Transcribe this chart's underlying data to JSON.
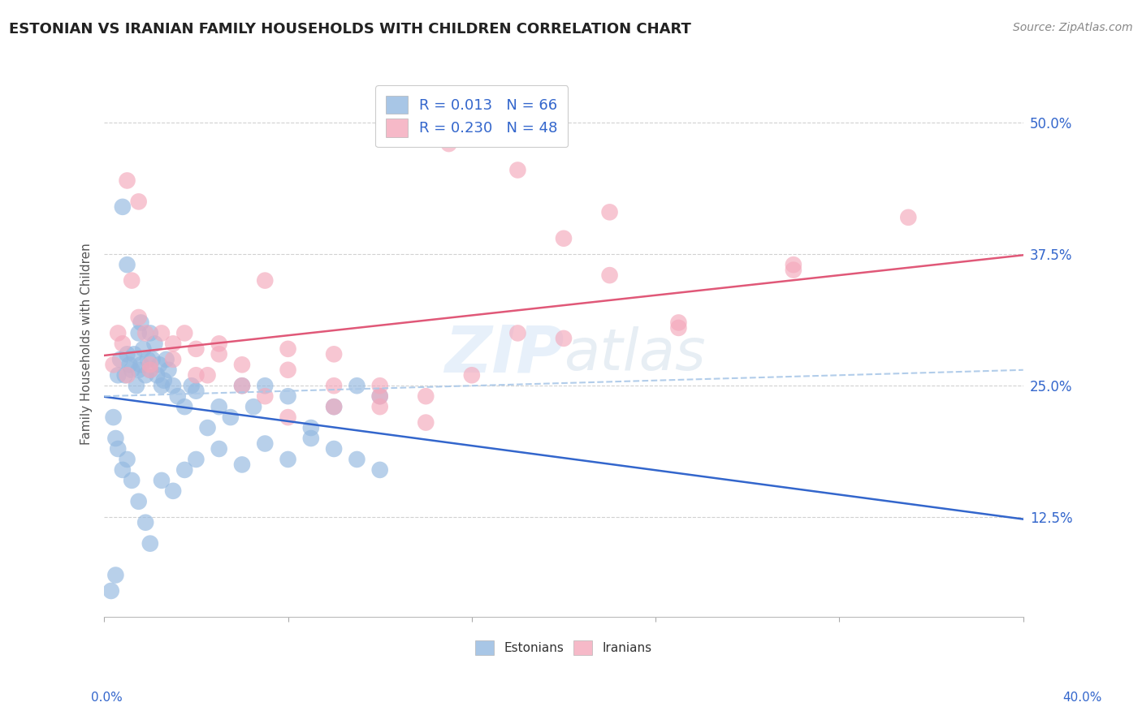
{
  "title": "ESTONIAN VS IRANIAN FAMILY HOUSEHOLDS WITH CHILDREN CORRELATION CHART",
  "source": "Source: ZipAtlas.com",
  "ylabel": "Family Households with Children",
  "xlim": [
    0.0,
    40.0
  ],
  "ylim": [
    3.0,
    55.0
  ],
  "yticks": [
    12.5,
    25.0,
    37.5,
    50.0
  ],
  "ytick_labels": [
    "12.5%",
    "25.0%",
    "37.5%",
    "50.0%"
  ],
  "estonian_color": "#92b8e0",
  "iranian_color": "#f4a8bb",
  "estonian_line_color": "#3366cc",
  "iranian_line_color": "#e05878",
  "dashed_line_color": "#aac8e8",
  "legend_text_color": "#3366cc",
  "tick_color": "#3366cc",
  "watermark": "ZIPatlas",
  "background_color": "#ffffff",
  "grid_color": "#cccccc",
  "estonian_x": [
    0.3,
    0.5,
    0.6,
    0.7,
    0.8,
    0.9,
    1.0,
    1.0,
    1.1,
    1.2,
    1.3,
    1.4,
    1.5,
    1.5,
    1.6,
    1.6,
    1.7,
    1.8,
    1.9,
    2.0,
    2.0,
    2.1,
    2.2,
    2.3,
    2.4,
    2.5,
    2.6,
    2.7,
    2.8,
    3.0,
    3.2,
    3.5,
    3.8,
    4.0,
    4.5,
    5.0,
    5.5,
    6.0,
    6.5,
    7.0,
    8.0,
    9.0,
    10.0,
    11.0,
    12.0,
    1.0,
    1.2,
    1.5,
    1.8,
    2.0,
    2.5,
    3.0,
    3.5,
    4.0,
    5.0,
    6.0,
    7.0,
    8.0,
    9.0,
    10.0,
    11.0,
    12.0,
    0.4,
    0.5,
    0.6,
    0.8
  ],
  "estonian_y": [
    5.5,
    7.0,
    26.0,
    27.5,
    42.0,
    26.0,
    28.0,
    36.5,
    27.0,
    26.5,
    28.0,
    25.0,
    26.5,
    30.0,
    27.0,
    31.0,
    28.5,
    26.0,
    27.5,
    26.5,
    30.0,
    27.5,
    29.0,
    26.0,
    27.0,
    25.0,
    25.5,
    27.5,
    26.5,
    25.0,
    24.0,
    23.0,
    25.0,
    24.5,
    21.0,
    23.0,
    22.0,
    25.0,
    23.0,
    25.0,
    24.0,
    21.0,
    23.0,
    25.0,
    24.0,
    18.0,
    16.0,
    14.0,
    12.0,
    10.0,
    16.0,
    15.0,
    17.0,
    18.0,
    19.0,
    17.5,
    19.5,
    18.0,
    20.0,
    19.0,
    18.0,
    17.0,
    22.0,
    20.0,
    19.0,
    17.0
  ],
  "iranian_x": [
    0.4,
    0.6,
    0.8,
    1.0,
    1.2,
    1.5,
    1.8,
    2.0,
    2.5,
    3.0,
    3.5,
    4.0,
    4.5,
    5.0,
    6.0,
    7.0,
    8.0,
    10.0,
    12.0,
    15.0,
    18.0,
    20.0,
    22.0,
    25.0,
    30.0,
    35.0,
    1.0,
    1.5,
    2.0,
    3.0,
    4.0,
    5.0,
    6.0,
    7.0,
    8.0,
    10.0,
    12.0,
    14.0,
    18.0,
    20.0,
    22.0,
    25.0,
    30.0,
    8.0,
    10.0,
    12.0,
    14.0,
    16.0
  ],
  "iranian_y": [
    27.0,
    30.0,
    29.0,
    26.0,
    35.0,
    31.5,
    30.0,
    26.5,
    30.0,
    27.5,
    30.0,
    28.5,
    26.0,
    29.0,
    27.0,
    35.0,
    28.5,
    28.0,
    24.0,
    48.0,
    45.5,
    39.0,
    41.5,
    31.0,
    36.5,
    41.0,
    44.5,
    42.5,
    27.0,
    29.0,
    26.0,
    28.0,
    25.0,
    24.0,
    26.5,
    25.0,
    23.0,
    21.5,
    30.0,
    29.5,
    35.5,
    30.5,
    36.0,
    22.0,
    23.0,
    25.0,
    24.0,
    26.0
  ]
}
